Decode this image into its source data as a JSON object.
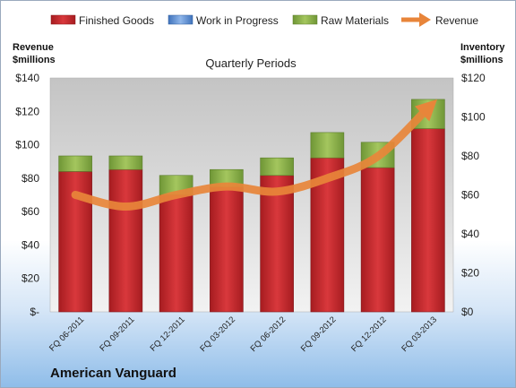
{
  "chart_data": {
    "type": "bar",
    "stacked": true,
    "subtitle": "Quarterly Periods",
    "company": "American Vanguard",
    "categories": [
      "FQ 06-2011",
      "FQ 09-2011",
      "FQ 12-2011",
      "FQ 03-2012",
      "FQ 06-2012",
      "FQ 09-2012",
      "FQ 12-2012",
      "FQ 03-2013"
    ],
    "left_axis": {
      "label_line1": "Revenue",
      "label_line2": "$millions",
      "ylim": [
        0,
        140
      ],
      "ticks": [
        0,
        20,
        40,
        60,
        80,
        100,
        120,
        140
      ],
      "tick_labels": [
        "$-",
        "$20",
        "$40",
        "$60",
        "$80",
        "$100",
        "$120",
        "$140"
      ]
    },
    "right_axis": {
      "label_line1": "Inventory",
      "label_line2": "$millions",
      "ylim": [
        0,
        120
      ],
      "ticks": [
        0,
        20,
        40,
        60,
        80,
        100,
        120
      ],
      "tick_labels": [
        "$0",
        "$20",
        "$40",
        "$60",
        "$80",
        "$100",
        "$120"
      ]
    },
    "series": [
      {
        "name": "Finished Goods",
        "color": "#c0262b",
        "axis": "right",
        "values": [
          72,
          73,
          60,
          64,
          70,
          79,
          74,
          94
        ]
      },
      {
        "name": "Work in Progress",
        "color": "#5b8fd6",
        "axis": "right",
        "values": [
          0,
          0,
          0,
          0,
          0,
          0,
          0,
          0
        ]
      },
      {
        "name": "Raw Materials",
        "color": "#8db34a",
        "axis": "right",
        "values": [
          8,
          7,
          10,
          9,
          9,
          13,
          13,
          15
        ]
      },
      {
        "name": "Revenue",
        "color": "#e8853a",
        "axis": "left",
        "type": "line",
        "values": [
          70,
          63,
          70,
          75,
          72,
          80,
          93,
          122
        ]
      }
    ],
    "legend_position": "top",
    "grid": false
  }
}
